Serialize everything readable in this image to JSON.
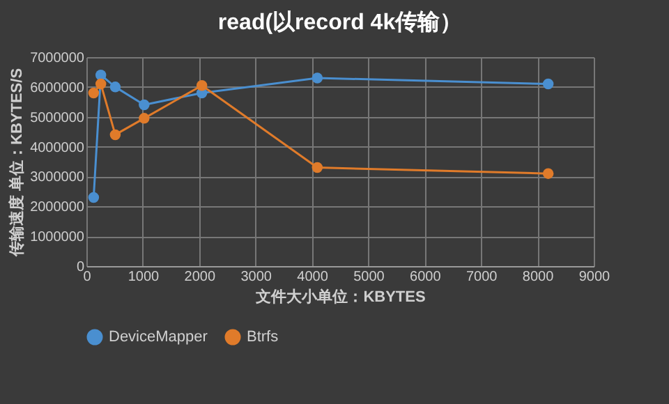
{
  "chart_data": {
    "type": "line",
    "title": "read(以record 4k传输）",
    "xlabel": "文件大小单位：KBYTES",
    "ylabel": "传输速度 单位：KBYTES/S",
    "x": [
      128,
      256,
      512,
      1024,
      2048,
      4096,
      8192
    ],
    "series": [
      {
        "name": "DeviceMapper",
        "color": "#4a8fd0",
        "values": [
          2300000,
          6400000,
          6000000,
          5400000,
          5800000,
          6300000,
          6100000
        ]
      },
      {
        "name": "Btrfs",
        "color": "#e07b2a",
        "values": [
          5800000,
          6100000,
          4400000,
          4950000,
          6050000,
          3300000,
          3100000
        ]
      }
    ],
    "xlim": [
      0,
      9000
    ],
    "xticks": [
      0,
      1000,
      2000,
      3000,
      4000,
      5000,
      6000,
      7000,
      8000,
      9000
    ],
    "ylim": [
      0,
      7000000
    ],
    "yticks": [
      0,
      1000000,
      2000000,
      3000000,
      4000000,
      5000000,
      6000000,
      7000000
    ],
    "grid": true,
    "legend": "bottom",
    "marker": "circle",
    "line_style": "solid"
  }
}
